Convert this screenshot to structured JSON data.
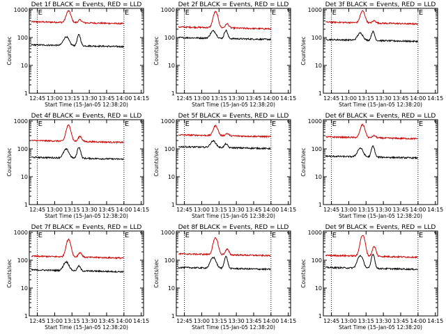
{
  "chart_data": [
    {
      "type": "line",
      "title": "Det 1f BLACK = Events, RED = LLD",
      "xlabel": "Start Time (15-Jan-05 12:38:20)",
      "ylabel": "Counts/sec",
      "yscale": "log",
      "ylim": [
        1,
        1000
      ],
      "xticklabels": [
        "12:45",
        "13:00",
        "13:15",
        "13:30",
        "13:45",
        "14:00",
        "14:15"
      ],
      "yticklabels": [
        "1",
        "10",
        "100",
        "1000"
      ],
      "vlines": [
        "12:45",
        "14:00"
      ],
      "markers": [
        "E",
        "E"
      ],
      "series": [
        {
          "color": "#cc0000",
          "base": 370,
          "peaks": [
            {
              "t": "13:12",
              "val": 930,
              "width": 2.5
            },
            {
              "t": "13:22",
              "val": 460,
              "width": 2
            }
          ]
        },
        {
          "color": "#000000",
          "base": 55,
          "peaks": [
            {
              "t": "13:10",
              "val": 110,
              "width": 3
            },
            {
              "t": "13:21",
              "val": 130,
              "width": 1.8
            }
          ]
        }
      ]
    },
    {
      "type": "line",
      "title": "Det 2f BLACK = Events, RED = LLD",
      "xlabel": "Start Time (15-Jan-05 12:38:20)",
      "ylabel": "Counts/sec",
      "yscale": "log",
      "ylim": [
        1,
        1000
      ],
      "xticklabels": [
        "12:45",
        "13:00",
        "13:15",
        "13:30",
        "13:45",
        "14:00",
        "14:15"
      ],
      "yticklabels": [
        "1",
        "10",
        "100",
        "1000"
      ],
      "vlines": [
        "12:45",
        "14:00"
      ],
      "markers": [
        "E",
        "E"
      ],
      "series": [
        {
          "color": "#cc0000",
          "base": 240,
          "peaks": [
            {
              "t": "13:12",
              "val": 860,
              "width": 2.5
            },
            {
              "t": "13:22",
              "val": 330,
              "width": 2
            }
          ]
        },
        {
          "color": "#000000",
          "base": 100,
          "peaks": [
            {
              "t": "13:10",
              "val": 180,
              "width": 3
            },
            {
              "t": "13:21",
              "val": 190,
              "width": 1.8
            }
          ]
        }
      ]
    },
    {
      "type": "line",
      "title": "Det 3f BLACK = Events, RED = LLD",
      "xlabel": "Start Time (15-Jan-05 12:38:20)",
      "ylabel": "Counts/sec",
      "yscale": "log",
      "ylim": [
        1,
        1000
      ],
      "xticklabels": [
        "12:45",
        "13:00",
        "13:15",
        "13:30",
        "13:45",
        "14:00",
        "14:15"
      ],
      "yticklabels": [
        "1",
        "10",
        "100",
        "1000"
      ],
      "vlines": [
        "12:45",
        "14:00"
      ],
      "markers": [
        "E",
        "E"
      ],
      "series": [
        {
          "color": "#cc0000",
          "base": 360,
          "peaks": [
            {
              "t": "13:12",
              "val": 920,
              "width": 2.5
            },
            {
              "t": "13:22",
              "val": 430,
              "width": 2
            }
          ]
        },
        {
          "color": "#000000",
          "base": 85,
          "peaks": [
            {
              "t": "13:10",
              "val": 150,
              "width": 3
            },
            {
              "t": "13:21",
              "val": 170,
              "width": 1.8
            }
          ]
        }
      ]
    },
    {
      "type": "line",
      "title": "Det 4f BLACK = Events, RED = LLD",
      "xlabel": "Start Time (15-Jan-05 12:38:20)",
      "ylabel": "Counts/sec",
      "yscale": "log",
      "ylim": [
        1,
        1000
      ],
      "xticklabels": [
        "12:45",
        "13:00",
        "13:15",
        "13:30",
        "13:45",
        "14:00",
        "14:15"
      ],
      "yticklabels": [
        "1",
        "10",
        "100",
        "1000"
      ],
      "vlines": [
        "12:45",
        "14:00"
      ],
      "markers": [
        "E",
        "E"
      ],
      "series": [
        {
          "color": "#cc0000",
          "base": 200,
          "peaks": [
            {
              "t": "13:12",
              "val": 720,
              "width": 2.5
            },
            {
              "t": "13:22",
              "val": 300,
              "width": 2
            }
          ]
        },
        {
          "color": "#000000",
          "base": 50,
          "peaks": [
            {
              "t": "13:10",
              "val": 100,
              "width": 3
            },
            {
              "t": "13:21",
              "val": 120,
              "width": 1.8
            }
          ]
        }
      ]
    },
    {
      "type": "line",
      "title": "Det 5f BLACK = Events, RED = LLD",
      "xlabel": "Start Time (15-Jan-05 12:38:20)",
      "ylabel": "Counts/sec",
      "yscale": "log",
      "ylim": [
        1,
        1000
      ],
      "xticklabels": [
        "12:45",
        "13:00",
        "13:15",
        "13:30",
        "13:45",
        "14:00",
        "14:15"
      ],
      "yticklabels": [
        "1",
        "10",
        "100",
        "1000"
      ],
      "vlines": [
        "12:45",
        "14:00"
      ],
      "markers": [
        "E",
        "E"
      ],
      "series": [
        {
          "color": "#cc0000",
          "base": 320,
          "peaks": [
            {
              "t": "13:12",
              "val": 700,
              "width": 2.5
            },
            {
              "t": "13:22",
              "val": 380,
              "width": 2
            }
          ]
        },
        {
          "color": "#000000",
          "base": 120,
          "peaks": [
            {
              "t": "13:10",
              "val": 200,
              "width": 3
            },
            {
              "t": "13:21",
              "val": 160,
              "width": 1.8
            }
          ]
        }
      ]
    },
    {
      "type": "line",
      "title": "Det 6f BLACK = Events, RED = LLD",
      "xlabel": "Start Time (15-Jan-05 12:38:20)",
      "ylabel": "Counts/sec",
      "yscale": "log",
      "ylim": [
        1,
        1000
      ],
      "xticklabels": [
        "12:45",
        "13:00",
        "13:15",
        "13:30",
        "13:45",
        "14:00",
        "14:15"
      ],
      "yticklabels": [
        "1",
        "10",
        "100",
        "1000"
      ],
      "vlines": [
        "12:45",
        "14:00"
      ],
      "markers": [
        "E",
        "E"
      ],
      "series": [
        {
          "color": "#cc0000",
          "base": 270,
          "peaks": [
            {
              "t": "13:12",
              "val": 760,
              "width": 2.5
            },
            {
              "t": "13:22",
              "val": 320,
              "width": 2
            }
          ]
        },
        {
          "color": "#000000",
          "base": 55,
          "peaks": [
            {
              "t": "13:10",
              "val": 110,
              "width": 3
            },
            {
              "t": "13:21",
              "val": 130,
              "width": 1.8
            }
          ]
        }
      ]
    },
    {
      "type": "line",
      "title": "Det 7f BLACK = Events, RED = LLD",
      "xlabel": "Start Time (15-Jan-05 12:38:20)",
      "ylabel": "Counts/sec",
      "yscale": "log",
      "ylim": [
        1,
        1000
      ],
      "xticklabels": [
        "12:45",
        "13:00",
        "13:15",
        "13:30",
        "13:45",
        "14:00",
        "14:15"
      ],
      "yticklabels": [
        "1",
        "10",
        "100",
        "1000"
      ],
      "vlines": [
        "12:45",
        "14:00"
      ],
      "markers": [
        "E",
        "E"
      ],
      "series": [
        {
          "color": "#cc0000",
          "base": 140,
          "peaks": [
            {
              "t": "13:12",
              "val": 560,
              "width": 2.5
            },
            {
              "t": "13:22",
              "val": 200,
              "width": 2
            }
          ]
        },
        {
          "color": "#000000",
          "base": 45,
          "peaks": [
            {
              "t": "13:10",
              "val": 90,
              "width": 3
            },
            {
              "t": "13:21",
              "val": 65,
              "width": 1.8
            }
          ]
        }
      ]
    },
    {
      "type": "line",
      "title": "Det 8f BLACK = Events, RED = LLD",
      "xlabel": "Start Time (15-Jan-05 12:38:20)",
      "ylabel": "Counts/sec",
      "yscale": "log",
      "ylim": [
        1,
        1000
      ],
      "xticklabels": [
        "12:45",
        "13:00",
        "13:15",
        "13:30",
        "13:45",
        "14:00",
        "14:15"
      ],
      "yticklabels": [
        "1",
        "10",
        "100",
        "1000"
      ],
      "vlines": [
        "12:45",
        "14:00"
      ],
      "markers": [
        "E",
        "E"
      ],
      "series": [
        {
          "color": "#cc0000",
          "base": 170,
          "peaks": [
            {
              "t": "13:12",
              "val": 640,
              "width": 2.5
            },
            {
              "t": "13:22",
              "val": 260,
              "width": 2
            }
          ]
        },
        {
          "color": "#000000",
          "base": 55,
          "peaks": [
            {
              "t": "13:10",
              "val": 130,
              "width": 3
            },
            {
              "t": "13:21",
              "val": 140,
              "width": 1.8
            }
          ]
        }
      ]
    },
    {
      "type": "line",
      "title": "Det 9f BLACK = Events, RED = LLD",
      "xlabel": "Start Time (15-Jan-05 12:38:20)",
      "ylabel": "Counts/sec",
      "yscale": "log",
      "ylim": [
        1,
        1000
      ],
      "xticklabels": [
        "12:45",
        "13:00",
        "13:15",
        "13:30",
        "13:45",
        "14:00",
        "14:15"
      ],
      "yticklabels": [
        "1",
        "10",
        "100",
        "1000"
      ],
      "vlines": [
        "12:45",
        "14:00"
      ],
      "markers": [
        "E",
        "E"
      ],
      "series": [
        {
          "color": "#cc0000",
          "base": 150,
          "peaks": [
            {
              "t": "13:12",
              "val": 800,
              "width": 2.5
            },
            {
              "t": "13:22",
              "val": 320,
              "width": 2
            }
          ]
        },
        {
          "color": "#000000",
          "base": 55,
          "peaks": [
            {
              "t": "13:10",
              "val": 150,
              "width": 3
            },
            {
              "t": "13:21",
              "val": 170,
              "width": 1.8
            }
          ]
        }
      ]
    }
  ]
}
